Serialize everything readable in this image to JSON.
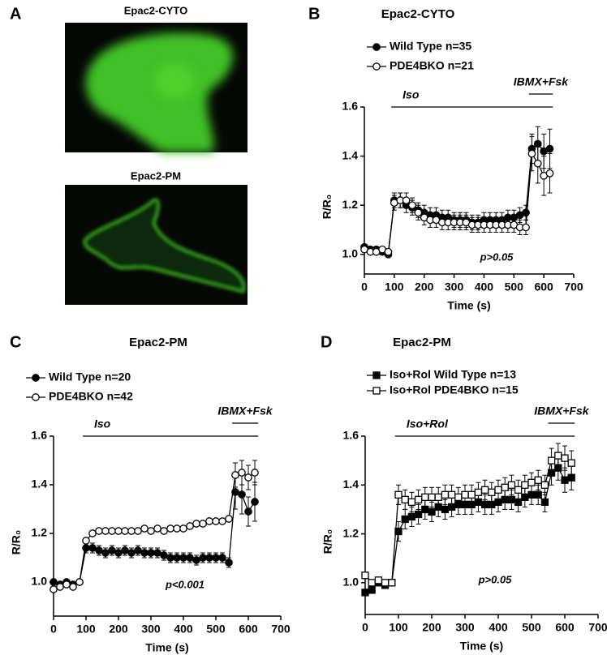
{
  "panel_a": {
    "label": "A",
    "images": [
      "Epac2-CYTO",
      "Epac2-PM"
    ]
  },
  "chart_data": [
    {
      "panel": "B",
      "type": "line",
      "title": "Epac2-CYTO",
      "xlabel": "Time (s)",
      "ylabel": "R/R₀",
      "x": [
        0,
        20,
        40,
        60,
        80,
        100,
        120,
        140,
        160,
        180,
        200,
        220,
        240,
        260,
        280,
        300,
        320,
        340,
        360,
        380,
        400,
        420,
        440,
        460,
        480,
        500,
        520,
        540,
        560,
        580,
        600,
        620
      ],
      "xlim": [
        0,
        700
      ],
      "xticks": [
        0,
        100,
        200,
        300,
        400,
        500,
        600,
        700
      ],
      "ylim": [
        0.92,
        1.6
      ],
      "yticks": [
        {
          "value": 1,
          "label": "1.0"
        },
        {
          "value": 1.2,
          "label": "1.2"
        },
        {
          "value": 1.4,
          "label": "1.4"
        },
        {
          "value": 1.6,
          "label": "1.6"
        }
      ],
      "series": [
        {
          "name": "Wild Type n=35",
          "color": "#000000",
          "marker": "circle",
          "filled": true,
          "values": [
            1.03,
            1.02,
            1.02,
            1.01,
            1.0,
            1.22,
            1.22,
            1.2,
            1.19,
            1.18,
            1.17,
            1.16,
            1.16,
            1.15,
            1.15,
            1.14,
            1.14,
            1.14,
            1.13,
            1.13,
            1.14,
            1.14,
            1.14,
            1.14,
            1.15,
            1.15,
            1.16,
            1.17,
            1.43,
            1.45,
            1.42,
            1.43
          ],
          "errors": [
            0.01,
            0.01,
            0.01,
            0.01,
            0.01,
            0.03,
            0.03,
            0.03,
            0.03,
            0.03,
            0.03,
            0.03,
            0.03,
            0.03,
            0.03,
            0.03,
            0.03,
            0.03,
            0.03,
            0.03,
            0.03,
            0.03,
            0.03,
            0.03,
            0.03,
            0.03,
            0.03,
            0.03,
            0.06,
            0.07,
            0.07,
            0.08
          ]
        },
        {
          "name": "PDE4BKO n=21",
          "color": "#000000",
          "marker": "circle",
          "filled": false,
          "values": [
            1.02,
            1.01,
            1.01,
            1.02,
            1.01,
            1.21,
            1.22,
            1.22,
            1.2,
            1.17,
            1.15,
            1.14,
            1.14,
            1.13,
            1.13,
            1.13,
            1.13,
            1.13,
            1.12,
            1.12,
            1.12,
            1.12,
            1.12,
            1.12,
            1.12,
            1.12,
            1.11,
            1.11,
            1.41,
            1.37,
            1.32,
            1.33
          ],
          "errors": [
            0.01,
            0.01,
            0.01,
            0.01,
            0.01,
            0.03,
            0.03,
            0.03,
            0.03,
            0.03,
            0.03,
            0.03,
            0.03,
            0.03,
            0.03,
            0.03,
            0.03,
            0.03,
            0.03,
            0.03,
            0.03,
            0.03,
            0.03,
            0.03,
            0.03,
            0.03,
            0.03,
            0.03,
            0.07,
            0.08,
            0.08,
            0.08
          ]
        }
      ],
      "treatments": [
        {
          "label": "Iso",
          "start": 90,
          "end": 630
        },
        {
          "label": "IBMX+Fsk",
          "start": 550,
          "end": 630
        }
      ],
      "annotation": "p>0.05"
    },
    {
      "panel": "C",
      "type": "line",
      "title": "Epac2-PM",
      "xlabel": "Time (s)",
      "ylabel": "R/R₀",
      "x": [
        0,
        20,
        40,
        60,
        80,
        100,
        120,
        140,
        160,
        180,
        200,
        220,
        240,
        260,
        280,
        300,
        320,
        340,
        360,
        380,
        400,
        420,
        440,
        460,
        480,
        500,
        520,
        540,
        560,
        580,
        600,
        620
      ],
      "xlim": [
        0,
        700
      ],
      "xticks": [
        0,
        100,
        200,
        300,
        400,
        500,
        600,
        700
      ],
      "ylim": [
        0.86,
        1.6
      ],
      "yticks": [
        {
          "value": 1,
          "label": "1.0"
        },
        {
          "value": 1.2,
          "label": "1.2"
        },
        {
          "value": 1.4,
          "label": "1.4"
        },
        {
          "value": 1.6,
          "label": "1.6"
        }
      ],
      "series": [
        {
          "name": "Wild Type n=20",
          "color": "#000000",
          "marker": "circle",
          "filled": true,
          "values": [
            1.0,
            0.99,
            1.0,
            0.99,
            1.0,
            1.14,
            1.14,
            1.13,
            1.12,
            1.13,
            1.12,
            1.13,
            1.12,
            1.13,
            1.12,
            1.12,
            1.12,
            1.11,
            1.1,
            1.1,
            1.1,
            1.1,
            1.09,
            1.1,
            1.1,
            1.1,
            1.1,
            1.08,
            1.37,
            1.36,
            1.29,
            1.33
          ],
          "errors": [
            0.01,
            0.01,
            0.01,
            0.01,
            0.01,
            0.02,
            0.02,
            0.02,
            0.02,
            0.02,
            0.02,
            0.02,
            0.02,
            0.02,
            0.02,
            0.02,
            0.02,
            0.02,
            0.02,
            0.02,
            0.02,
            0.02,
            0.02,
            0.02,
            0.02,
            0.02,
            0.02,
            0.02,
            0.07,
            0.08,
            0.06,
            0.08
          ]
        },
        {
          "name": "PDE4BKO n=42",
          "color": "#000000",
          "marker": "circle",
          "filled": false,
          "values": [
            0.97,
            0.98,
            0.99,
            0.98,
            1.0,
            1.17,
            1.2,
            1.21,
            1.21,
            1.21,
            1.21,
            1.21,
            1.21,
            1.21,
            1.22,
            1.21,
            1.22,
            1.21,
            1.22,
            1.22,
            1.22,
            1.23,
            1.24,
            1.24,
            1.25,
            1.25,
            1.25,
            1.26,
            1.44,
            1.45,
            1.43,
            1.45
          ],
          "errors": [
            0.01,
            0.01,
            0.01,
            0.01,
            0.01,
            0.01,
            0.01,
            0.01,
            0.01,
            0.01,
            0.01,
            0.01,
            0.01,
            0.01,
            0.01,
            0.01,
            0.01,
            0.01,
            0.01,
            0.01,
            0.01,
            0.01,
            0.01,
            0.01,
            0.01,
            0.01,
            0.01,
            0.01,
            0.05,
            0.05,
            0.05,
            0.05
          ]
        }
      ],
      "treatments": [
        {
          "label": "Iso",
          "start": 90,
          "end": 630
        },
        {
          "label": "IBMX+Fsk",
          "start": 550,
          "end": 630
        }
      ],
      "annotation": "p<0.001"
    },
    {
      "panel": "D",
      "type": "line",
      "title": "Epac2-PM",
      "xlabel": "Time (s)",
      "ylabel": "R/R₀",
      "x": [
        0,
        20,
        40,
        60,
        80,
        100,
        120,
        140,
        160,
        180,
        200,
        220,
        240,
        260,
        280,
        300,
        320,
        340,
        360,
        380,
        400,
        420,
        440,
        460,
        480,
        500,
        520,
        540,
        560,
        580,
        600,
        620
      ],
      "xlim": [
        0,
        700
      ],
      "xticks": [
        0,
        100,
        200,
        300,
        400,
        500,
        600,
        700
      ],
      "ylim": [
        0.87,
        1.6
      ],
      "yticks": [
        {
          "value": 1,
          "label": "1.0"
        },
        {
          "value": 1.2,
          "label": "1.2"
        },
        {
          "value": 1.4,
          "label": "1.4"
        },
        {
          "value": 1.6,
          "label": "1.6"
        }
      ],
      "series": [
        {
          "name": "Iso+Rol Wild Type n=13",
          "color": "#000000",
          "marker": "square",
          "filled": true,
          "values": [
            0.96,
            0.97,
            1.0,
            0.99,
            1.0,
            1.21,
            1.26,
            1.27,
            1.28,
            1.3,
            1.29,
            1.31,
            1.3,
            1.31,
            1.32,
            1.32,
            1.32,
            1.33,
            1.32,
            1.32,
            1.33,
            1.34,
            1.34,
            1.33,
            1.35,
            1.36,
            1.36,
            1.33,
            1.45,
            1.47,
            1.42,
            1.43
          ],
          "errors": [
            0.01,
            0.01,
            0.01,
            0.01,
            0.01,
            0.04,
            0.04,
            0.04,
            0.04,
            0.04,
            0.04,
            0.04,
            0.04,
            0.04,
            0.04,
            0.04,
            0.04,
            0.04,
            0.04,
            0.04,
            0.04,
            0.04,
            0.04,
            0.04,
            0.04,
            0.04,
            0.04,
            0.04,
            0.05,
            0.05,
            0.05,
            0.05
          ]
        },
        {
          "name": "Iso+Rol PDE4BKO n=15",
          "color": "#000000",
          "marker": "square",
          "filled": false,
          "values": [
            1.03,
            1.0,
            1.01,
            1.0,
            1.0,
            1.36,
            1.34,
            1.33,
            1.34,
            1.35,
            1.35,
            1.35,
            1.36,
            1.36,
            1.35,
            1.36,
            1.36,
            1.37,
            1.38,
            1.37,
            1.38,
            1.39,
            1.4,
            1.38,
            1.4,
            1.41,
            1.42,
            1.4,
            1.5,
            1.52,
            1.51,
            1.49
          ],
          "errors": [
            0.01,
            0.01,
            0.01,
            0.01,
            0.01,
            0.04,
            0.04,
            0.04,
            0.04,
            0.04,
            0.04,
            0.04,
            0.04,
            0.04,
            0.04,
            0.04,
            0.04,
            0.04,
            0.04,
            0.04,
            0.04,
            0.04,
            0.04,
            0.04,
            0.04,
            0.04,
            0.04,
            0.04,
            0.05,
            0.05,
            0.05,
            0.05
          ]
        }
      ],
      "treatments": [
        {
          "label": "Iso+Rol",
          "start": 90,
          "end": 630
        },
        {
          "label": "IBMX+Fsk",
          "start": 550,
          "end": 630
        }
      ],
      "annotation": "p>0.05"
    }
  ]
}
